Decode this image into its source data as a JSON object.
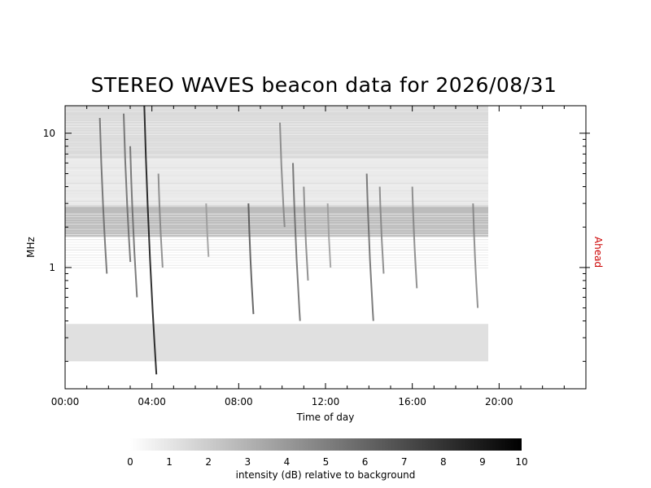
{
  "chart_data": {
    "type": "heatmap",
    "title": "STEREO WAVES beacon data for 2026/08/31",
    "xlabel": "Time of day",
    "ylabel": "MHz",
    "side_label": "Ahead",
    "side_label_color": "#cc0000",
    "x_unit": "hours",
    "xlim": [
      0,
      24
    ],
    "x_ticks": [
      {
        "value": 0,
        "label": "00:00"
      },
      {
        "value": 4,
        "label": "04:00"
      },
      {
        "value": 8,
        "label": "08:00"
      },
      {
        "value": 12,
        "label": "12:00"
      },
      {
        "value": 16,
        "label": "16:00"
      },
      {
        "value": 20,
        "label": "20:00"
      }
    ],
    "y_scale": "log",
    "ylim": [
      0.125,
      16.025
    ],
    "y_ticks": [
      {
        "value": 1,
        "label": "1"
      },
      {
        "value": 10,
        "label": "10"
      }
    ],
    "data_coverage_hours": [
      0,
      19.5
    ],
    "colorbar": {
      "label": "intensity (dB) relative to background",
      "range": [
        0,
        10
      ],
      "ticks": [
        "0",
        "1",
        "2",
        "3",
        "4",
        "5",
        "6",
        "7",
        "8",
        "9",
        "10"
      ],
      "colormap": "white-to-black"
    },
    "bands_mhz": [
      {
        "from": 0.2,
        "to": 0.38,
        "intensity": 1.2
      },
      {
        "from": 1.7,
        "to": 2.9,
        "intensity": 2.6
      },
      {
        "from": 2.9,
        "to": 6.5,
        "intensity": 0.8
      },
      {
        "from": 6.5,
        "to": 16.025,
        "intensity": 1.4
      }
    ],
    "bursts": [
      {
        "time": 3.65,
        "top_mhz": 16.025,
        "bottom_mhz": 0.16,
        "peak": 9.5
      },
      {
        "time": 3.0,
        "top_mhz": 8,
        "bottom_mhz": 0.6,
        "peak": 6
      },
      {
        "time": 1.6,
        "top_mhz": 13,
        "bottom_mhz": 0.9,
        "peak": 6
      },
      {
        "time": 2.7,
        "top_mhz": 14,
        "bottom_mhz": 1.1,
        "peak": 6
      },
      {
        "time": 4.3,
        "top_mhz": 5,
        "bottom_mhz": 1.0,
        "peak": 5
      },
      {
        "time": 8.45,
        "top_mhz": 3,
        "bottom_mhz": 0.45,
        "peak": 7
      },
      {
        "time": 10.5,
        "top_mhz": 6,
        "bottom_mhz": 0.4,
        "peak": 6
      },
      {
        "time": 11.0,
        "top_mhz": 4,
        "bottom_mhz": 0.8,
        "peak": 5
      },
      {
        "time": 9.9,
        "top_mhz": 12,
        "bottom_mhz": 2.0,
        "peak": 5
      },
      {
        "time": 13.9,
        "top_mhz": 5,
        "bottom_mhz": 0.4,
        "peak": 6
      },
      {
        "time": 14.5,
        "top_mhz": 4,
        "bottom_mhz": 0.9,
        "peak": 5
      },
      {
        "time": 16.0,
        "top_mhz": 4,
        "bottom_mhz": 0.7,
        "peak": 5
      },
      {
        "time": 18.8,
        "top_mhz": 3,
        "bottom_mhz": 0.5,
        "peak": 5
      },
      {
        "time": 6.5,
        "top_mhz": 3,
        "bottom_mhz": 1.2,
        "peak": 4
      },
      {
        "time": 12.1,
        "top_mhz": 3,
        "bottom_mhz": 1.0,
        "peak": 4
      }
    ]
  }
}
